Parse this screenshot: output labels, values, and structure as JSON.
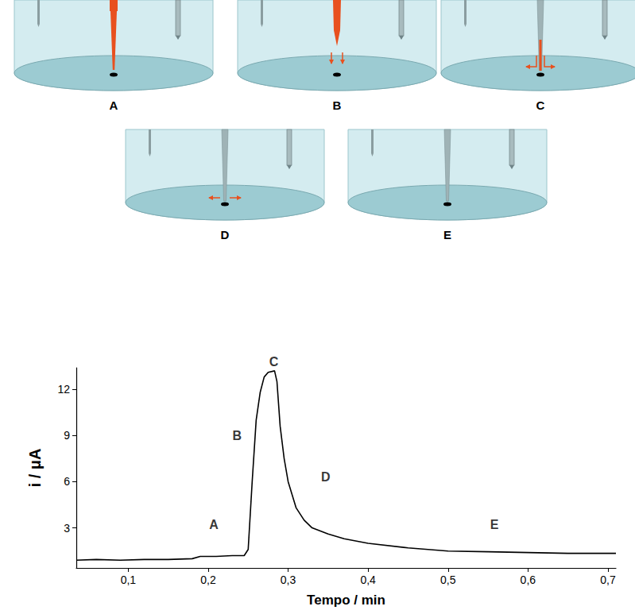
{
  "chart_data": {
    "type": "line",
    "x": [
      0.035,
      0.06,
      0.09,
      0.12,
      0.15,
      0.18,
      0.19,
      0.21,
      0.23,
      0.245,
      0.25,
      0.255,
      0.26,
      0.265,
      0.27,
      0.275,
      0.283,
      0.286,
      0.29,
      0.295,
      0.3,
      0.31,
      0.32,
      0.33,
      0.35,
      0.37,
      0.4,
      0.45,
      0.5,
      0.55,
      0.6,
      0.65,
      0.71
    ],
    "values": [
      0.9,
      0.95,
      0.9,
      0.95,
      0.95,
      1.0,
      1.15,
      1.15,
      1.2,
      1.2,
      1.6,
      6.0,
      10.0,
      11.8,
      12.8,
      13.1,
      13.2,
      12.5,
      9.6,
      7.5,
      6.0,
      4.3,
      3.5,
      3.0,
      2.6,
      2.3,
      2.0,
      1.7,
      1.5,
      1.45,
      1.4,
      1.35,
      1.35
    ],
    "color": "#000000",
    "x_label": "Tempo / min",
    "y_label": "i / μA",
    "xlim": [
      0.035,
      0.71
    ],
    "ylim": [
      0.4,
      13.4
    ],
    "xticks": [
      {
        "value": 0.1,
        "label": "0,1"
      },
      {
        "value": 0.2,
        "label": "0,2"
      },
      {
        "value": 0.3,
        "label": "0,3"
      },
      {
        "value": 0.4,
        "label": "0,4"
      },
      {
        "value": 0.5,
        "label": "0,5"
      },
      {
        "value": 0.6,
        "label": "0,6"
      },
      {
        "value": 0.7,
        "label": "0,7"
      }
    ],
    "yticks": [
      3,
      6,
      9,
      12
    ],
    "grid": false,
    "annotations": [
      {
        "text": "A",
        "x": 0.207,
        "y": 3.2
      },
      {
        "text": "B",
        "x": 0.236,
        "y": 9.0
      },
      {
        "text": "C",
        "x": 0.282,
        "y": 13.8
      },
      {
        "text": "D",
        "x": 0.347,
        "y": 6.3
      },
      {
        "text": "E",
        "x": 0.558,
        "y": 3.2
      }
    ]
  },
  "diagram": {
    "panels": [
      "A",
      "B",
      "C",
      "D",
      "E"
    ]
  }
}
